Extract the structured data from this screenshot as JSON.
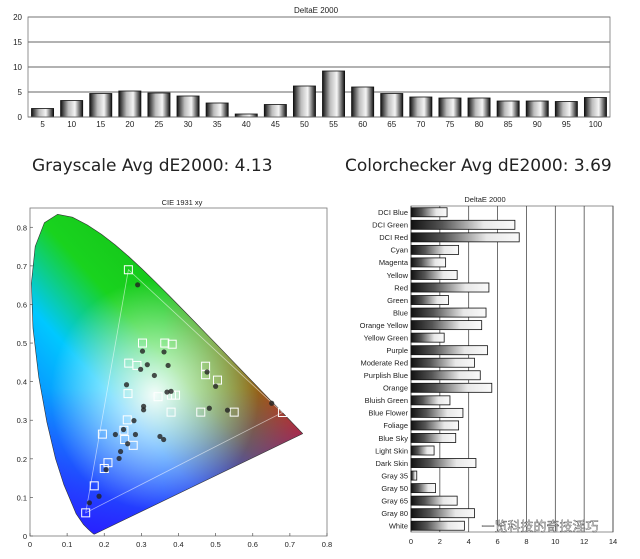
{
  "headings": {
    "grayscale": "Grayscale Avg dE2000: 4.13",
    "colorchecker": "Colorchecker Avg dE2000: 3.69"
  },
  "watermark": "一览科技的奇技淫巧",
  "colors": {
    "bar_dark": "#1a1a1a",
    "bar_light": "#f2f2f2",
    "gridline": "#333333",
    "marker_point": "#222222",
    "marker_target": "#ffffff"
  },
  "chart_data": [
    {
      "type": "bar",
      "title": "DeltaE 2000",
      "categories": [
        "5",
        "10",
        "15",
        "20",
        "25",
        "30",
        "35",
        "40",
        "45",
        "50",
        "55",
        "60",
        "65",
        "70",
        "75",
        "80",
        "85",
        "90",
        "95",
        "100"
      ],
      "values": [
        1.7,
        3.3,
        4.7,
        5.2,
        4.8,
        4.2,
        2.8,
        0.6,
        2.5,
        6.2,
        9.2,
        6.0,
        4.7,
        4.0,
        3.8,
        3.8,
        3.2,
        3.2,
        3.1,
        3.9
      ],
      "ylim": [
        0,
        20
      ],
      "yticks": [
        "0",
        "5",
        "10",
        "15",
        "20"
      ],
      "grid": true
    },
    {
      "type": "scatter",
      "title": "CIE 1931 xy",
      "xlim": [
        0,
        0.8
      ],
      "ylim": [
        0,
        0.85
      ],
      "xticks": [
        "0",
        "0.1",
        "0.2",
        "0.3",
        "0.4",
        "0.5",
        "0.6",
        "0.7",
        "0.8"
      ],
      "yticks": [
        "0",
        "0.1",
        "0.2",
        "0.3",
        "0.4",
        "0.5",
        "0.6",
        "0.7",
        "0.8"
      ],
      "gamut_triangle": [
        [
          0.68,
          0.32
        ],
        [
          0.265,
          0.69
        ],
        [
          0.15,
          0.06
        ]
      ],
      "series": [
        {
          "marker": "square",
          "points": [
            [
              0.265,
              0.69
            ],
            [
              0.303,
              0.5
            ],
            [
              0.363,
              0.5
            ],
            [
              0.383,
              0.497
            ],
            [
              0.473,
              0.44
            ],
            [
              0.473,
              0.418
            ],
            [
              0.505,
              0.404
            ],
            [
              0.288,
              0.442
            ],
            [
              0.266,
              0.448
            ],
            [
              0.264,
              0.369
            ],
            [
              0.381,
              0.365
            ],
            [
              0.392,
              0.365
            ],
            [
              0.345,
              0.361
            ],
            [
              0.55,
              0.321
            ],
            [
              0.46,
              0.321
            ],
            [
              0.38,
              0.321
            ],
            [
              0.68,
              0.32
            ],
            [
              0.262,
              0.301
            ],
            [
              0.195,
              0.264
            ],
            [
              0.253,
              0.274
            ],
            [
              0.255,
              0.25
            ],
            [
              0.278,
              0.235
            ],
            [
              0.21,
              0.19
            ],
            [
              0.2,
              0.175
            ],
            [
              0.173,
              0.13
            ],
            [
              0.15,
              0.06
            ]
          ]
        },
        {
          "marker": "circle",
          "points": [
            [
              0.29,
              0.651
            ],
            [
              0.303,
              0.479
            ],
            [
              0.361,
              0.477
            ],
            [
              0.372,
              0.442
            ],
            [
              0.477,
              0.425
            ],
            [
              0.5,
              0.388
            ],
            [
              0.316,
              0.444
            ],
            [
              0.298,
              0.432
            ],
            [
              0.335,
              0.416
            ],
            [
              0.26,
              0.392
            ],
            [
              0.369,
              0.373
            ],
            [
              0.38,
              0.375
            ],
            [
              0.306,
              0.336
            ],
            [
              0.532,
              0.326
            ],
            [
              0.483,
              0.331
            ],
            [
              0.651,
              0.344
            ],
            [
              0.252,
              0.276
            ],
            [
              0.306,
              0.327
            ],
            [
              0.28,
              0.299
            ],
            [
              0.23,
              0.263
            ],
            [
              0.284,
              0.263
            ],
            [
              0.35,
              0.258
            ],
            [
              0.36,
              0.25
            ],
            [
              0.263,
              0.239
            ],
            [
              0.244,
              0.219
            ],
            [
              0.24,
              0.201
            ],
            [
              0.205,
              0.172
            ],
            [
              0.186,
              0.103
            ],
            [
              0.16,
              0.086
            ]
          ]
        }
      ]
    },
    {
      "type": "bar",
      "orientation": "horizontal",
      "title": "DeltaE 2000",
      "categories": [
        "DCI Blue",
        "DCI Green",
        "DCI Red",
        "Cyan",
        "Magenta",
        "Yellow",
        "Red",
        "Green",
        "Blue",
        "Orange Yellow",
        "Yellow Green",
        "Purple",
        "Moderate Red",
        "Purplish Blue",
        "Orange",
        "Bluish Green",
        "Blue Flower",
        "Foliage",
        "Blue Sky",
        "Light Skin",
        "Dark Skin",
        "Gray 35",
        "Gray 50",
        "Gray 65",
        "Gray 80",
        "White"
      ],
      "values": [
        2.5,
        7.2,
        7.5,
        3.3,
        2.4,
        3.2,
        5.4,
        2.6,
        5.2,
        4.9,
        2.3,
        5.3,
        4.4,
        4.8,
        5.6,
        2.7,
        3.6,
        3.3,
        3.1,
        1.6,
        4.5,
        0.4,
        1.7,
        3.2,
        4.4,
        3.7
      ],
      "xlim": [
        0,
        14
      ],
      "xticks": [
        "0",
        "2",
        "4",
        "6",
        "8",
        "10",
        "12",
        "14"
      ],
      "grid": true
    }
  ]
}
